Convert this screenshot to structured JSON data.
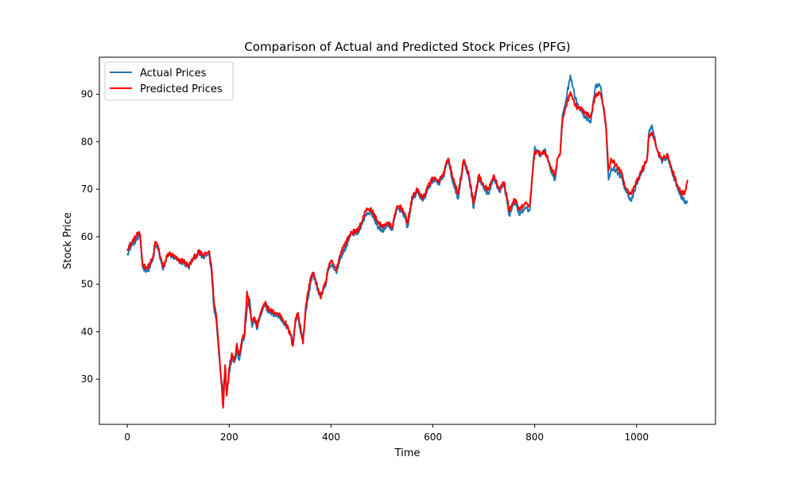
{
  "chart_data": {
    "type": "line",
    "title": "Comparison of Actual and Predicted Stock Prices (PFG)",
    "xlabel": "Time",
    "ylabel": "Stock Price",
    "xlim": [
      -55,
      1155
    ],
    "ylim": [
      20.5,
      97.8
    ],
    "x_ticks": [
      0,
      200,
      400,
      600,
      800,
      1000
    ],
    "y_ticks": [
      30,
      40,
      50,
      60,
      70,
      80,
      90
    ],
    "grid": false,
    "legend_position": "top-left",
    "x_keyframes": [
      0,
      10,
      20,
      25,
      30,
      40,
      50,
      55,
      60,
      70,
      80,
      90,
      100,
      110,
      120,
      130,
      140,
      150,
      160,
      165,
      170,
      175,
      180,
      185,
      188,
      192,
      195,
      200,
      205,
      210,
      215,
      220,
      225,
      230,
      235,
      240,
      245,
      250,
      255,
      260,
      270,
      280,
      290,
      300,
      310,
      320,
      325,
      330,
      335,
      340,
      345,
      350,
      355,
      360,
      365,
      370,
      375,
      380,
      385,
      390,
      395,
      400,
      410,
      420,
      430,
      440,
      450,
      460,
      470,
      480,
      490,
      500,
      510,
      520,
      530,
      540,
      550,
      560,
      570,
      580,
      590,
      600,
      610,
      620,
      630,
      640,
      650,
      660,
      670,
      680,
      690,
      700,
      710,
      720,
      730,
      740,
      750,
      760,
      770,
      780,
      790,
      800,
      810,
      820,
      830,
      840,
      845,
      850,
      855,
      860,
      870,
      880,
      890,
      900,
      910,
      920,
      930,
      935,
      940,
      945,
      950,
      960,
      970,
      980,
      990,
      1000,
      1010,
      1020,
      1025,
      1030,
      1040,
      1050,
      1060,
      1070,
      1080,
      1090,
      1095,
      1100
    ],
    "series": [
      {
        "name": "Actual Prices",
        "color": "#1f77b4",
        "values": [
          56.5,
          58.5,
          59.5,
          60.0,
          53.5,
          52.8,
          55.0,
          58.2,
          57.5,
          53.0,
          56.5,
          55.5,
          55.0,
          54.5,
          53.5,
          55.5,
          56.5,
          55.5,
          56.5,
          53.0,
          45.0,
          42.0,
          35.0,
          29.5,
          27.0,
          32.0,
          27.0,
          31.5,
          34.5,
          33.5,
          36.0,
          34.0,
          37.5,
          39.0,
          45.0,
          47.0,
          41.0,
          42.5,
          40.5,
          43.0,
          45.5,
          44.0,
          43.5,
          43.0,
          41.5,
          39.5,
          38.0,
          42.0,
          43.5,
          40.0,
          38.5,
          44.0,
          47.0,
          50.5,
          52.0,
          50.0,
          48.5,
          47.5,
          49.0,
          50.0,
          53.0,
          54.0,
          52.5,
          56.0,
          58.0,
          61.0,
          60.5,
          62.5,
          65.0,
          65.0,
          62.5,
          61.0,
          62.5,
          61.5,
          66.0,
          65.5,
          62.0,
          68.0,
          69.5,
          67.5,
          70.0,
          72.0,
          71.0,
          72.5,
          76.0,
          71.0,
          68.0,
          75.5,
          73.0,
          66.0,
          72.5,
          70.0,
          69.0,
          72.5,
          69.5,
          71.0,
          64.5,
          67.5,
          64.5,
          66.0,
          65.5,
          79.0,
          77.0,
          78.5,
          74.5,
          72.0,
          76.5,
          77.5,
          86.0,
          88.0,
          94.0,
          89.0,
          86.5,
          85.0,
          84.0,
          92.0,
          91.5,
          87.0,
          83.0,
          72.0,
          74.5,
          74.0,
          72.5,
          69.5,
          67.5,
          71.0,
          73.5,
          76.0,
          82.5,
          83.5,
          78.5,
          75.5,
          77.0,
          73.5,
          70.5,
          68.0,
          67.5,
          67.5
        ]
      },
      {
        "name": "Predicted Prices",
        "color": "#ff0000",
        "values": [
          57.5,
          59.0,
          60.5,
          60.5,
          54.0,
          53.5,
          55.5,
          59.0,
          58.0,
          53.5,
          56.5,
          56.0,
          55.0,
          55.0,
          53.8,
          55.5,
          56.8,
          56.0,
          57.0,
          54.0,
          46.5,
          43.0,
          36.0,
          29.0,
          24.0,
          33.0,
          26.5,
          32.5,
          35.5,
          33.8,
          37.5,
          35.0,
          38.5,
          39.5,
          48.5,
          45.0,
          42.0,
          43.0,
          41.0,
          43.5,
          46.0,
          44.5,
          44.0,
          43.5,
          42.0,
          39.5,
          37.0,
          42.5,
          44.0,
          41.0,
          37.5,
          45.0,
          48.5,
          51.5,
          52.5,
          50.5,
          49.0,
          47.0,
          49.5,
          50.5,
          53.5,
          55.0,
          53.0,
          57.0,
          59.0,
          61.0,
          61.0,
          63.0,
          66.0,
          65.5,
          63.5,
          62.0,
          63.0,
          62.0,
          66.5,
          66.0,
          63.0,
          68.5,
          70.0,
          68.0,
          70.5,
          72.5,
          71.5,
          73.0,
          76.5,
          72.0,
          69.0,
          76.0,
          73.5,
          67.0,
          73.0,
          70.5,
          70.0,
          73.0,
          70.0,
          71.5,
          65.5,
          68.0,
          65.5,
          67.0,
          66.5,
          78.0,
          77.5,
          78.0,
          75.0,
          73.0,
          76.5,
          77.5,
          85.0,
          87.0,
          90.5,
          87.5,
          87.0,
          86.0,
          85.0,
          90.0,
          90.0,
          87.5,
          83.5,
          74.0,
          76.5,
          75.0,
          73.5,
          70.0,
          69.0,
          71.5,
          74.0,
          76.0,
          81.5,
          82.0,
          78.5,
          76.0,
          77.5,
          74.0,
          71.0,
          69.0,
          69.5,
          72.0
        ]
      }
    ]
  }
}
